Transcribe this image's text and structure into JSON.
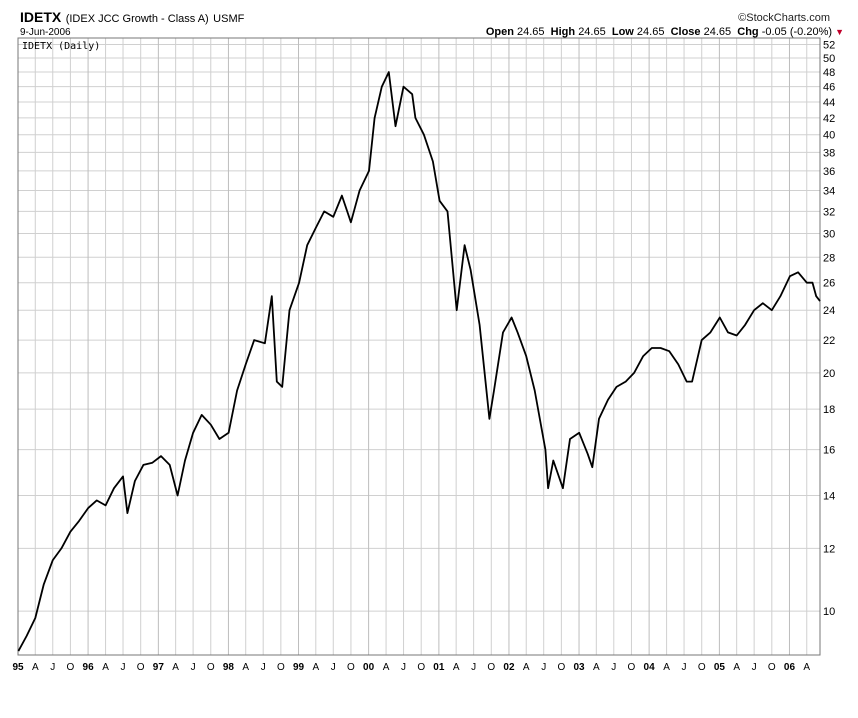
{
  "header": {
    "symbol": "IDETX",
    "description": "(IDEX JCC Growth - Class A)",
    "exchange": "USMF",
    "date": "9-Jun-2006",
    "brand": "StockCharts.com",
    "open_label": "Open",
    "open": "24.65",
    "high_label": "High",
    "high": "24.65",
    "low_label": "Low",
    "low": "24.65",
    "close_label": "Close",
    "close": "24.65",
    "chg_label": "Chg",
    "chg": "-0.05 (-0.20%)"
  },
  "chart_data": {
    "type": "line",
    "title": "IDETX (Daily)",
    "y_scale": "log",
    "ylim": [
      8.8,
      53
    ],
    "yticks": [
      10,
      12,
      14,
      16,
      18,
      20,
      22,
      24,
      26,
      28,
      30,
      32,
      34,
      36,
      38,
      40,
      42,
      44,
      46,
      48,
      50,
      52
    ],
    "xlim": [
      "1995-01-01",
      "2006-06-09"
    ],
    "x_tick_labels": [
      "95",
      "A",
      "J",
      "O",
      "96",
      "A",
      "J",
      "O",
      "97",
      "A",
      "J",
      "O",
      "98",
      "A",
      "J",
      "O",
      "99",
      "A",
      "J",
      "O",
      "00",
      "A",
      "J",
      "O",
      "01",
      "A",
      "J",
      "O",
      "02",
      "A",
      "J",
      "O",
      "03",
      "A",
      "J",
      "O",
      "04",
      "A",
      "J",
      "O",
      "05",
      "A",
      "J",
      "O",
      "06",
      "A"
    ],
    "grid": true,
    "series": [
      {
        "x": [
          "1995-01-03",
          "1995-02-15",
          "1995-04-01",
          "1995-05-15",
          "1995-07-01",
          "1995-08-15",
          "1995-10-01",
          "1995-11-15",
          "1996-01-02",
          "1996-02-15",
          "1996-04-01",
          "1996-05-15",
          "1996-07-01",
          "1996-07-24",
          "1996-09-01",
          "1996-10-15",
          "1996-12-01",
          "1997-01-15",
          "1997-03-01",
          "1997-04-11",
          "1997-05-20",
          "1997-07-01",
          "1997-08-15",
          "1997-10-01",
          "1997-11-15",
          "1998-01-02",
          "1998-02-15",
          "1998-04-01",
          "1998-05-15",
          "1998-07-10",
          "1998-08-15",
          "1998-09-10",
          "1998-10-08",
          "1998-11-15",
          "1999-01-04",
          "1999-02-15",
          "1999-04-01",
          "1999-05-15",
          "1999-07-01",
          "1999-08-15",
          "1999-10-01",
          "1999-11-15",
          "2000-01-03",
          "2000-02-01",
          "2000-03-10",
          "2000-04-15",
          "2000-05-20",
          "2000-07-01",
          "2000-08-15",
          "2000-09-01",
          "2000-10-15",
          "2000-12-01",
          "2001-01-05",
          "2001-02-15",
          "2001-04-04",
          "2001-05-15",
          "2001-06-15",
          "2001-08-01",
          "2001-09-21",
          "2001-10-15",
          "2001-12-01",
          "2002-01-15",
          "2002-02-15",
          "2002-04-01",
          "2002-05-15",
          "2002-07-10",
          "2002-07-24",
          "2002-08-20",
          "2002-10-09",
          "2002-11-15",
          "2003-01-02",
          "2003-02-15",
          "2003-03-11",
          "2003-04-15",
          "2003-06-01",
          "2003-07-15",
          "2003-09-01",
          "2003-10-15",
          "2003-12-01",
          "2004-01-15",
          "2004-03-01",
          "2004-04-15",
          "2004-06-01",
          "2004-07-15",
          "2004-08-12",
          "2004-10-01",
          "2004-11-15",
          "2005-01-03",
          "2005-02-15",
          "2005-04-01",
          "2005-05-15",
          "2005-07-01",
          "2005-08-15",
          "2005-10-01",
          "2005-11-15",
          "2006-01-03",
          "2006-02-15",
          "2006-04-01",
          "2006-05-01",
          "2006-05-20",
          "2006-06-09"
        ],
        "y": [
          8.9,
          9.3,
          9.8,
          10.8,
          11.6,
          12.0,
          12.6,
          13.0,
          13.5,
          13.8,
          13.6,
          14.3,
          14.8,
          13.3,
          14.6,
          15.3,
          15.4,
          15.7,
          15.3,
          14.0,
          15.5,
          16.8,
          17.7,
          17.2,
          16.5,
          16.8,
          19.0,
          20.5,
          22.0,
          21.8,
          25.0,
          19.5,
          19.2,
          24.0,
          26.0,
          29.0,
          30.5,
          32.0,
          31.5,
          33.5,
          31.0,
          34.0,
          36.0,
          42.0,
          46.0,
          48.0,
          41.0,
          46.0,
          45.0,
          42.0,
          40.0,
          37.0,
          33.0,
          32.0,
          24.0,
          29.0,
          27.0,
          23.0,
          17.5,
          19.0,
          22.5,
          23.5,
          22.5,
          21.0,
          19.0,
          16.0,
          14.3,
          15.5,
          14.3,
          16.5,
          16.8,
          15.8,
          15.2,
          17.5,
          18.5,
          19.2,
          19.5,
          20.0,
          21.0,
          21.5,
          21.5,
          21.3,
          20.5,
          19.5,
          19.5,
          22.0,
          22.5,
          23.5,
          22.5,
          22.3,
          23.0,
          24.0,
          24.5,
          24.0,
          25.0,
          26.5,
          26.8,
          26.0,
          26.0,
          25.0,
          24.65
        ]
      }
    ]
  }
}
